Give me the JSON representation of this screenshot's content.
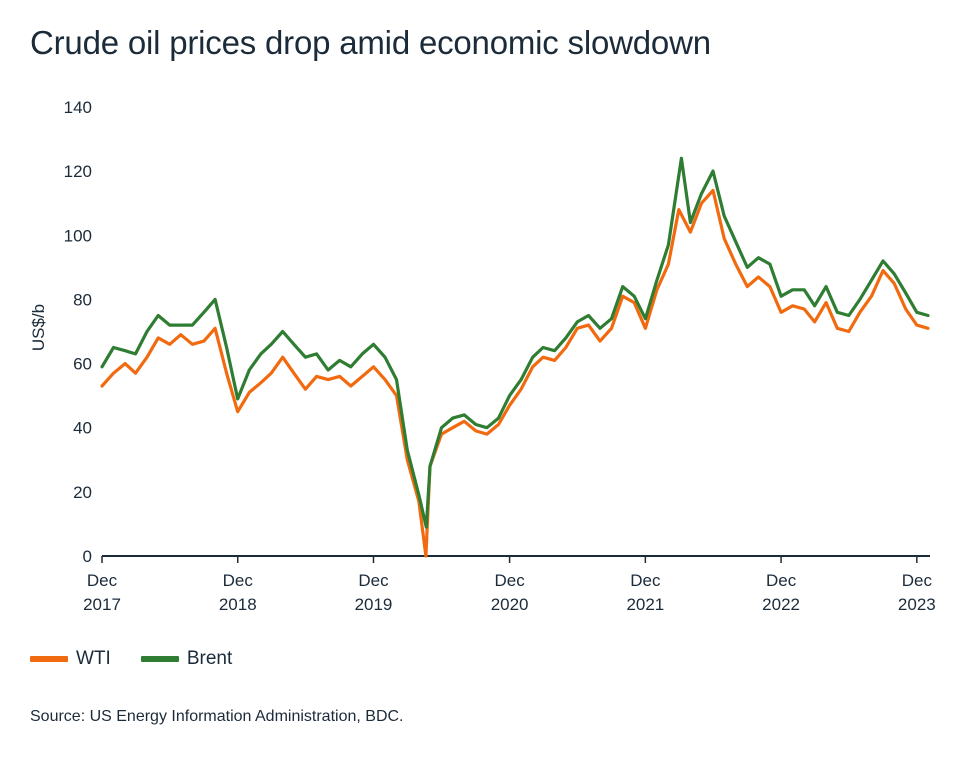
{
  "title": "Crude oil prices drop amid economic slowdown",
  "source": "Source: US Energy Information Administration, BDC.",
  "colors": {
    "wti": "#f26a10",
    "brent": "#2e7d32",
    "text": "#1c2b3a",
    "axis": "#1c2b3a"
  },
  "chart_data": {
    "type": "line",
    "title": "Crude oil prices drop amid economic slowdown",
    "ylabel": "US$/b",
    "xlabel": "",
    "ylim": [
      0,
      140
    ],
    "yticks": [
      0,
      20,
      40,
      60,
      80,
      100,
      120,
      140
    ],
    "xlim": [
      "2017-12-01",
      "2023-12-31"
    ],
    "xticks": [
      {
        "date": "2017-12-01",
        "label": [
          "Dec",
          "2017"
        ]
      },
      {
        "date": "2018-12-01",
        "label": [
          "Dec",
          "2018"
        ]
      },
      {
        "date": "2019-12-01",
        "label": [
          "Dec",
          "2019"
        ]
      },
      {
        "date": "2020-12-01",
        "label": [
          "Dec",
          "2020"
        ]
      },
      {
        "date": "2021-12-01",
        "label": [
          "Dec",
          "2021"
        ]
      },
      {
        "date": "2022-12-01",
        "label": [
          "Dec",
          "2022"
        ]
      },
      {
        "date": "2023-12-01",
        "label": [
          "Dec",
          "2023"
        ]
      }
    ],
    "grid": false,
    "legend_position": "bottom-left",
    "series": [
      {
        "name": "WTI",
        "color": "#f26a10",
        "points": [
          [
            "2017-12-01",
            53
          ],
          [
            "2018-01-01",
            57
          ],
          [
            "2018-02-01",
            60
          ],
          [
            "2018-03-01",
            57
          ],
          [
            "2018-04-01",
            62
          ],
          [
            "2018-05-01",
            68
          ],
          [
            "2018-06-01",
            66
          ],
          [
            "2018-07-01",
            69
          ],
          [
            "2018-08-01",
            66
          ],
          [
            "2018-09-01",
            67
          ],
          [
            "2018-10-01",
            71
          ],
          [
            "2018-11-01",
            57
          ],
          [
            "2018-12-01",
            45
          ],
          [
            "2019-01-01",
            51
          ],
          [
            "2019-02-01",
            54
          ],
          [
            "2019-03-01",
            57
          ],
          [
            "2019-04-01",
            62
          ],
          [
            "2019-05-01",
            57
          ],
          [
            "2019-06-01",
            52
          ],
          [
            "2019-07-01",
            56
          ],
          [
            "2019-08-01",
            55
          ],
          [
            "2019-09-01",
            56
          ],
          [
            "2019-10-01",
            53
          ],
          [
            "2019-11-01",
            56
          ],
          [
            "2019-12-01",
            59
          ],
          [
            "2020-01-01",
            55
          ],
          [
            "2020-02-01",
            50
          ],
          [
            "2020-03-01",
            30
          ],
          [
            "2020-04-01",
            17
          ],
          [
            "2020-04-20",
            0
          ],
          [
            "2020-05-01",
            28
          ],
          [
            "2020-06-01",
            38
          ],
          [
            "2020-07-01",
            40
          ],
          [
            "2020-08-01",
            42
          ],
          [
            "2020-09-01",
            39
          ],
          [
            "2020-10-01",
            38
          ],
          [
            "2020-11-01",
            41
          ],
          [
            "2020-12-01",
            47
          ],
          [
            "2021-01-01",
            52
          ],
          [
            "2021-02-01",
            59
          ],
          [
            "2021-03-01",
            62
          ],
          [
            "2021-04-01",
            61
          ],
          [
            "2021-05-01",
            65
          ],
          [
            "2021-06-01",
            71
          ],
          [
            "2021-07-01",
            72
          ],
          [
            "2021-08-01",
            67
          ],
          [
            "2021-09-01",
            71
          ],
          [
            "2021-10-01",
            81
          ],
          [
            "2021-11-01",
            79
          ],
          [
            "2021-12-01",
            71
          ],
          [
            "2022-01-01",
            83
          ],
          [
            "2022-02-01",
            91
          ],
          [
            "2022-03-01",
            108
          ],
          [
            "2022-04-01",
            101
          ],
          [
            "2022-05-01",
            110
          ],
          [
            "2022-06-01",
            114
          ],
          [
            "2022-07-01",
            99
          ],
          [
            "2022-08-01",
            91
          ],
          [
            "2022-09-01",
            84
          ],
          [
            "2022-10-01",
            87
          ],
          [
            "2022-11-01",
            84
          ],
          [
            "2022-12-01",
            76
          ],
          [
            "2023-01-01",
            78
          ],
          [
            "2023-02-01",
            77
          ],
          [
            "2023-03-01",
            73
          ],
          [
            "2023-04-01",
            79
          ],
          [
            "2023-05-01",
            71
          ],
          [
            "2023-06-01",
            70
          ],
          [
            "2023-07-01",
            76
          ],
          [
            "2023-08-01",
            81
          ],
          [
            "2023-09-01",
            89
          ],
          [
            "2023-10-01",
            85
          ],
          [
            "2023-11-01",
            77
          ],
          [
            "2023-12-01",
            72
          ],
          [
            "2023-12-31",
            71
          ]
        ]
      },
      {
        "name": "Brent",
        "color": "#2e7d32",
        "points": [
          [
            "2017-12-01",
            59
          ],
          [
            "2018-01-01",
            65
          ],
          [
            "2018-02-01",
            64
          ],
          [
            "2018-03-01",
            63
          ],
          [
            "2018-04-01",
            70
          ],
          [
            "2018-05-01",
            75
          ],
          [
            "2018-06-01",
            72
          ],
          [
            "2018-07-01",
            72
          ],
          [
            "2018-08-01",
            72
          ],
          [
            "2018-09-01",
            76
          ],
          [
            "2018-10-01",
            80
          ],
          [
            "2018-11-01",
            65
          ],
          [
            "2018-12-01",
            49
          ],
          [
            "2019-01-01",
            58
          ],
          [
            "2019-02-01",
            63
          ],
          [
            "2019-03-01",
            66
          ],
          [
            "2019-04-01",
            70
          ],
          [
            "2019-05-01",
            66
          ],
          [
            "2019-06-01",
            62
          ],
          [
            "2019-07-01",
            63
          ],
          [
            "2019-08-01",
            58
          ],
          [
            "2019-09-01",
            61
          ],
          [
            "2019-10-01",
            59
          ],
          [
            "2019-11-01",
            63
          ],
          [
            "2019-12-01",
            66
          ],
          [
            "2020-01-01",
            62
          ],
          [
            "2020-02-01",
            55
          ],
          [
            "2020-03-01",
            33
          ],
          [
            "2020-04-01",
            19
          ],
          [
            "2020-04-21",
            9
          ],
          [
            "2020-05-01",
            28
          ],
          [
            "2020-06-01",
            40
          ],
          [
            "2020-07-01",
            43
          ],
          [
            "2020-08-01",
            44
          ],
          [
            "2020-09-01",
            41
          ],
          [
            "2020-10-01",
            40
          ],
          [
            "2020-11-01",
            43
          ],
          [
            "2020-12-01",
            50
          ],
          [
            "2021-01-01",
            55
          ],
          [
            "2021-02-01",
            62
          ],
          [
            "2021-03-01",
            65
          ],
          [
            "2021-04-01",
            64
          ],
          [
            "2021-05-01",
            68
          ],
          [
            "2021-06-01",
            73
          ],
          [
            "2021-07-01",
            75
          ],
          [
            "2021-08-01",
            71
          ],
          [
            "2021-09-01",
            74
          ],
          [
            "2021-10-01",
            84
          ],
          [
            "2021-11-01",
            81
          ],
          [
            "2021-12-01",
            74
          ],
          [
            "2022-01-01",
            86
          ],
          [
            "2022-02-01",
            97
          ],
          [
            "2022-03-08",
            124
          ],
          [
            "2022-04-01",
            104
          ],
          [
            "2022-05-01",
            113
          ],
          [
            "2022-06-01",
            120
          ],
          [
            "2022-07-01",
            106
          ],
          [
            "2022-08-01",
            98
          ],
          [
            "2022-09-01",
            90
          ],
          [
            "2022-10-01",
            93
          ],
          [
            "2022-11-01",
            91
          ],
          [
            "2022-12-01",
            81
          ],
          [
            "2023-01-01",
            83
          ],
          [
            "2023-02-01",
            83
          ],
          [
            "2023-03-01",
            78
          ],
          [
            "2023-04-01",
            84
          ],
          [
            "2023-05-01",
            76
          ],
          [
            "2023-06-01",
            75
          ],
          [
            "2023-07-01",
            80
          ],
          [
            "2023-08-01",
            86
          ],
          [
            "2023-09-01",
            92
          ],
          [
            "2023-10-01",
            88
          ],
          [
            "2023-11-01",
            82
          ],
          [
            "2023-12-01",
            76
          ],
          [
            "2023-12-31",
            75
          ]
        ]
      }
    ]
  }
}
